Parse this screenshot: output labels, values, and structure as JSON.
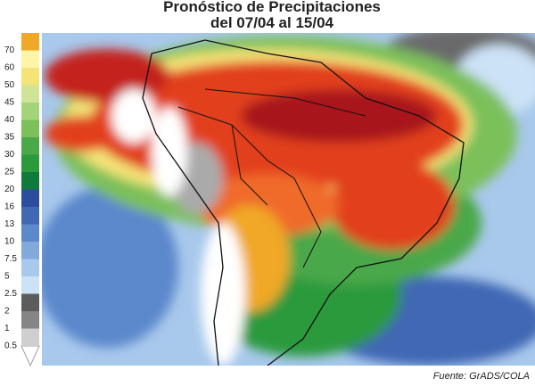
{
  "header": {
    "title": "Pronóstico de Precipitaciones",
    "subtitle": "del 07/04 al 15/04"
  },
  "legend": {
    "items": [
      {
        "label": "70",
        "color": "#f0a828"
      },
      {
        "label": "60",
        "color": "#fff4a8"
      },
      {
        "label": "50",
        "color": "#f4e478"
      },
      {
        "label": "45",
        "color": "#cfe496"
      },
      {
        "label": "40",
        "color": "#a4d47a"
      },
      {
        "label": "35",
        "color": "#7cc05a"
      },
      {
        "label": "30",
        "color": "#4aa848"
      },
      {
        "label": "25",
        "color": "#2a9a3c"
      },
      {
        "label": "20",
        "color": "#107a3a"
      },
      {
        "label": "16",
        "color": "#2e4c9c"
      },
      {
        "label": "13",
        "color": "#4068b4"
      },
      {
        "label": "10",
        "color": "#5c88cc"
      },
      {
        "label": "7.5",
        "color": "#82a8dc"
      },
      {
        "label": "5",
        "color": "#a8c8ec"
      },
      {
        "label": "2.5",
        "color": "#cce2f6"
      },
      {
        "label": "2",
        "color": "#5c5c5c"
      },
      {
        "label": "1",
        "color": "#858585"
      },
      {
        "label": "0.5",
        "color": "#aaaaaa"
      }
    ],
    "lowest_color": "#cfcfcf"
  },
  "footer": {
    "source": "Fuente: GrADS/COLA"
  }
}
